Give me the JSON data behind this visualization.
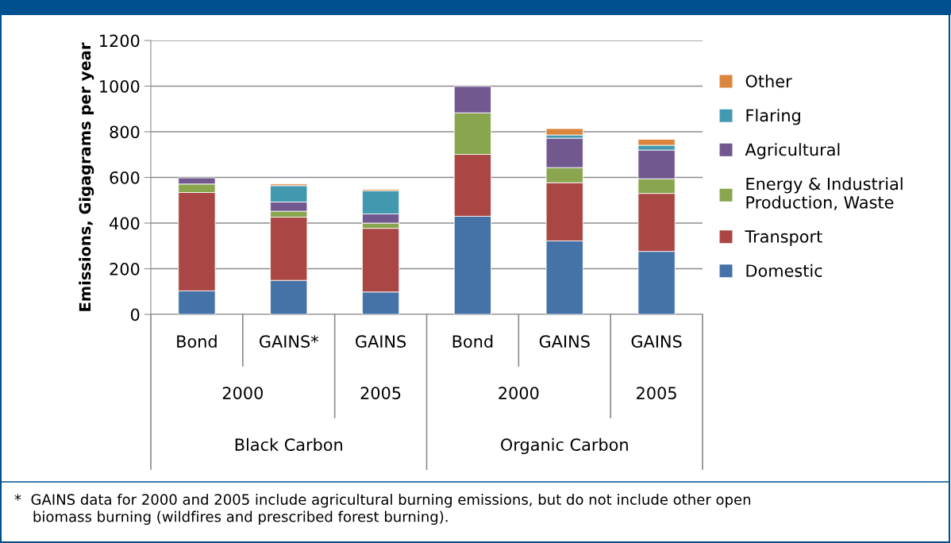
{
  "chart_data": {
    "type": "bar",
    "stacked": true,
    "ylabel": "Emissions, Gigagrams per year",
    "categories": [
      "Bond",
      "GAINS*",
      "GAINS",
      "Bond",
      "GAINS",
      "GAINS"
    ],
    "series": [
      {
        "name": "Domestic",
        "color": "#4572a7",
        "values": [
          103,
          149,
          98,
          430,
          322,
          276
        ]
      },
      {
        "name": "Transport",
        "color": "#aa4643",
        "values": [
          431,
          277,
          279,
          271,
          255,
          254
        ]
      },
      {
        "name": "Energy & Industrial\nProduction, Waste",
        "color": "#89a54e",
        "values": [
          37,
          26,
          23,
          182,
          66,
          64
        ]
      },
      {
        "name": "Agricultural",
        "color": "#71588f",
        "values": [
          27,
          40,
          40,
          116,
          129,
          126
        ]
      },
      {
        "name": "Flaring",
        "color": "#4198af",
        "values": [
          null,
          72,
          102,
          null,
          14,
          21
        ]
      },
      {
        "name": "Other",
        "color": "#db843d",
        "values": [
          null,
          7,
          6,
          null,
          28,
          26
        ]
      }
    ],
    "ylim": [
      0,
      1200
    ],
    "yticks": [
      0,
      200,
      400,
      600,
      800,
      1000,
      1200
    ],
    "grid": "y",
    "legend": "right",
    "annotations": [
      "2000",
      "2005",
      "2000",
      "2005",
      "Black Carbon",
      "Organic Carbon",
      "*  GAINS data for 2000 and 2005 include agricultural burning emissions, but do not include other open\n    biomass burning (wildfires and prescribed forest burning)."
    ]
  }
}
